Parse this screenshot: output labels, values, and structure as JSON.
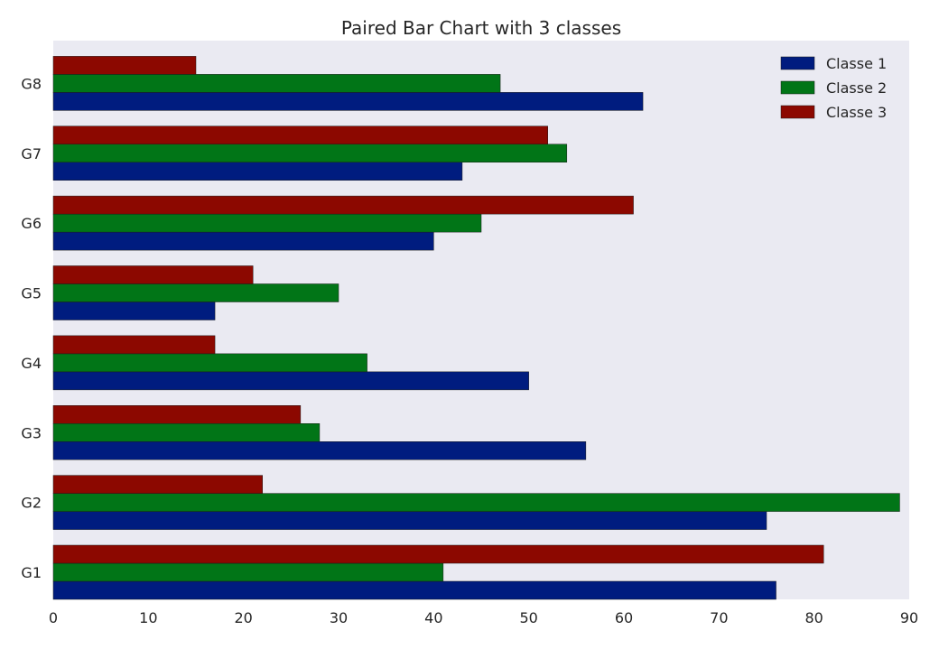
{
  "chart_data": {
    "type": "bar",
    "orientation": "horizontal",
    "title": "Paired Bar Chart with 3 classes",
    "xlabel": "",
    "ylabel": "",
    "categories": [
      "G1",
      "G2",
      "G3",
      "G4",
      "G5",
      "G6",
      "G7",
      "G8"
    ],
    "series": [
      {
        "name": "Classe 1",
        "color": "#001c7f",
        "values": [
          76,
          75,
          56,
          50,
          17,
          40,
          43,
          62
        ]
      },
      {
        "name": "Classe 2",
        "color": "#017517",
        "values": [
          41,
          89,
          28,
          33,
          30,
          45,
          54,
          47
        ]
      },
      {
        "name": "Classe 3",
        "color": "#8c0800",
        "values": [
          81,
          22,
          26,
          17,
          21,
          61,
          52,
          15
        ]
      }
    ],
    "xlim": [
      0,
      90
    ],
    "xticks": [
      0,
      10,
      20,
      30,
      40,
      50,
      60,
      70,
      80,
      90
    ],
    "grid": false,
    "legend_position": "top-right",
    "background": "#eaeaf2"
  }
}
